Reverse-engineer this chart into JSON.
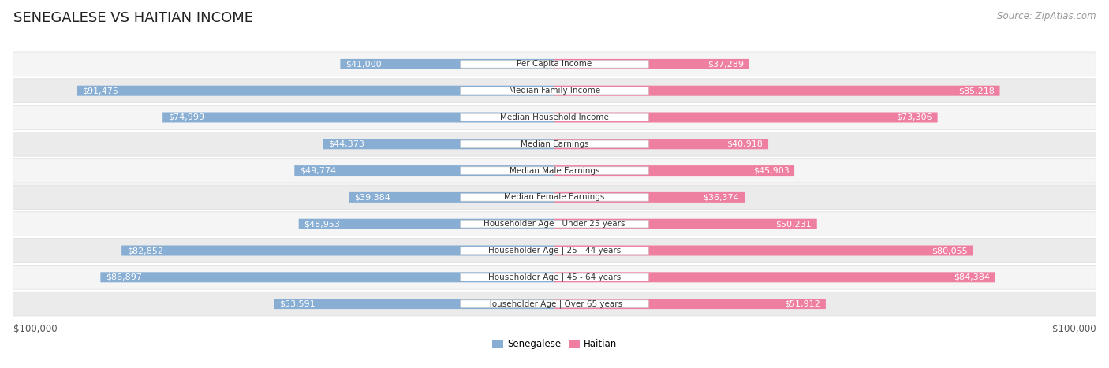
{
  "title": "SENEGALESE VS HAITIAN INCOME",
  "source": "Source: ZipAtlas.com",
  "max_value": 100000,
  "categories": [
    "Per Capita Income",
    "Median Family Income",
    "Median Household Income",
    "Median Earnings",
    "Median Male Earnings",
    "Median Female Earnings",
    "Householder Age | Under 25 years",
    "Householder Age | 25 - 44 years",
    "Householder Age | 45 - 64 years",
    "Householder Age | Over 65 years"
  ],
  "senegalese_values": [
    41000,
    91475,
    74999,
    44373,
    49774,
    39384,
    48953,
    82852,
    86897,
    53591
  ],
  "haitian_values": [
    37289,
    85218,
    73306,
    40918,
    45903,
    36374,
    50231,
    80055,
    84384,
    51912
  ],
  "senegalese_color": "#88aed4",
  "haitian_color": "#ee7fa0",
  "senegalese_label_color_dark": "#555555",
  "haitian_label_color_dark": "#555555",
  "senegalese_label_color_white": "#ffffff",
  "haitian_label_color_white": "#ffffff",
  "row_bg_even": "#f5f5f5",
  "row_bg_odd": "#ebebeb",
  "row_border_color": "#dddddd",
  "center_label_bg": "#ffffff",
  "center_label_border": "#cccccc",
  "title_fontsize": 13,
  "source_fontsize": 8.5,
  "bar_label_fontsize": 8,
  "category_fontsize": 7.5,
  "axis_label_fontsize": 8.5,
  "legend_fontsize": 8.5,
  "background_color": "#ffffff",
  "ylabel_left": "$100,000",
  "ylabel_right": "$100,000",
  "inside_threshold": 30000
}
